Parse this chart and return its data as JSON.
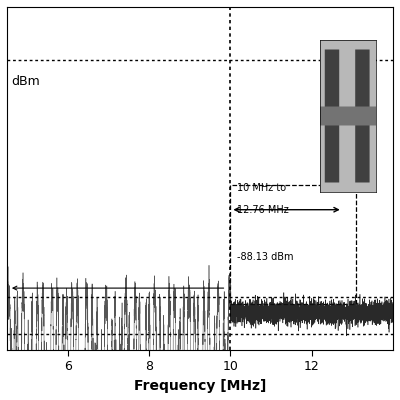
{
  "xlabel": "Frequency [MHz]",
  "ylabel": "dBm",
  "xlim": [
    4.5,
    14.0
  ],
  "ylim_bottom": -105,
  "ylim_top": 5,
  "noise_floor": -88.13,
  "band_gap_start": 10.0,
  "band_gap_end": 12.76,
  "vline_x": 10.0,
  "annotation_text1": "10 MHz to",
  "annotation_text2": "12.76 MHz",
  "noise_label": "-88.13 dBm",
  "bg_color": "#ffffff",
  "signal_color_left": "#444444",
  "signal_color_right": "#111111",
  "dashed_color": "#000000",
  "xticks": [
    6,
    8,
    10,
    12
  ],
  "top_dotted_y": -10,
  "bottom_dotted_y": -98
}
